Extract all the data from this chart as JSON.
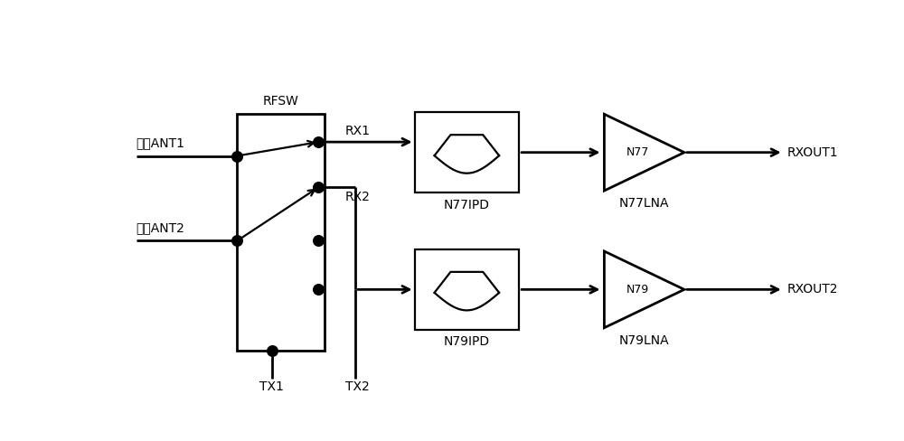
{
  "bg_color": "#ffffff",
  "lc": "#000000",
  "rfsw_label": "RFSW",
  "ant1_label": "天线ANT1",
  "ant2_label": "天线ANT2",
  "rx1_label": "RX1",
  "rx2_label": "RX2",
  "tx1_label": "TX1",
  "tx2_label": "TX2",
  "n77ipd_label": "N77IPD",
  "n77lna_label": "N77LNA",
  "n77_label": "N77",
  "rxout1_label": "RXOUT1",
  "n79ipd_label": "N79IPD",
  "n79lna_label": "N79LNA",
  "n79_label": "N79",
  "rxout2_label": "RXOUT2",
  "fig_w": 10.0,
  "fig_h": 4.88,
  "dpi": 100,
  "lw": 1.6,
  "lw_thick": 2.0,
  "dot_s": 70,
  "fs_label": 10,
  "fs_inner": 9
}
